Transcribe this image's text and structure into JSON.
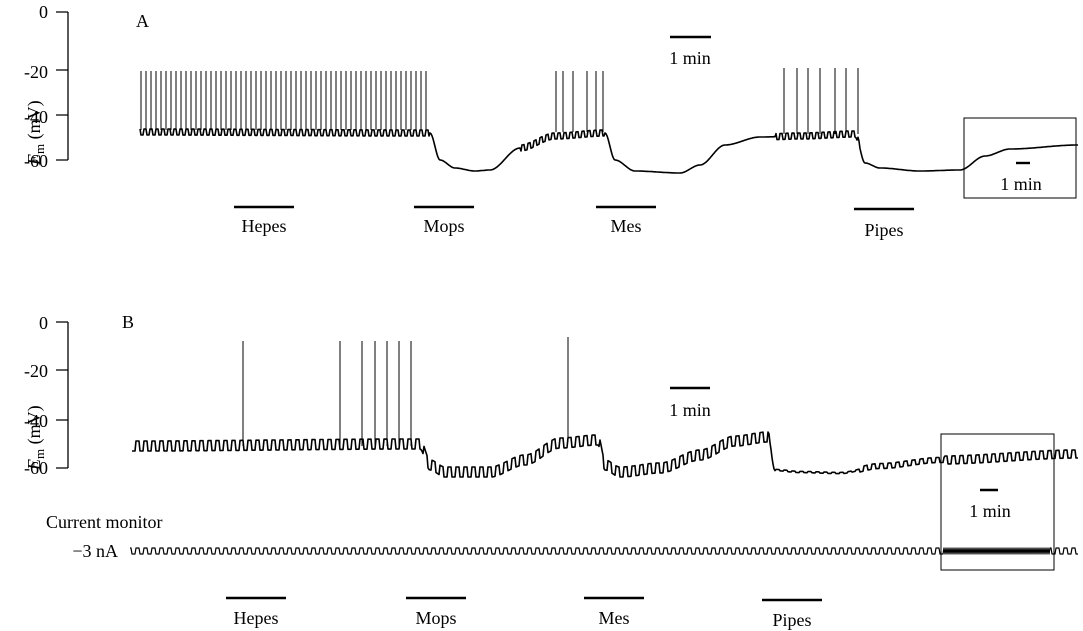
{
  "panels": [
    {
      "label": "A",
      "y_axis_label": {
        "symbol": "E",
        "subscript": "m",
        "unit": " (mV)"
      },
      "y_ticks": [
        "0",
        "-20",
        "-40",
        "-60"
      ],
      "scale_bar": "1 min",
      "inset_scale_bar": "1 min",
      "solutions": [
        "Hepes",
        "Mops",
        "Mes",
        "Pipes"
      ]
    },
    {
      "label": "B",
      "y_axis_label": {
        "symbol": "E",
        "subscript": "m",
        "unit": " (mV)"
      },
      "y_ticks": [
        "0",
        "-20",
        "-40",
        "-60"
      ],
      "scale_bar": "1 min",
      "inset_scale_bar": "1 min",
      "current_monitor_label": "Current monitor",
      "current_level_label": "−3 nA",
      "solutions": [
        "Hepes",
        "Mops",
        "Mes",
        "Pipes"
      ]
    }
  ],
  "chart_data": [
    {
      "type": "line",
      "panel": "A",
      "ylabel": "Em (mV)",
      "ylim": [
        -65,
        0
      ],
      "y_ticks": [
        0,
        -20,
        -40,
        -60
      ],
      "time_scale_min": 1,
      "baseline_mV": -48,
      "spike_peak_mV": -20,
      "epochs": [
        {
          "solution": "Hepes",
          "Em_mV": -48,
          "firing": true
        },
        {
          "solution": "Mops",
          "Em_mV": -64,
          "firing": false
        },
        {
          "solution": "Mes",
          "Em_mV": -65,
          "firing": false
        },
        {
          "solution": "Pipes",
          "Em_mV": -64,
          "firing": false
        }
      ],
      "spike_counts_between_applications": [
        59,
        6,
        6
      ]
    },
    {
      "type": "line",
      "panel": "B",
      "ylabel": "Em (mV)",
      "ylim": [
        -65,
        0
      ],
      "y_ticks": [
        0,
        -20,
        -40,
        -60
      ],
      "time_scale_min": 1,
      "spike_peak_mV": -8,
      "epochs": [
        {
          "solution": "Hepes",
          "Em_mV": -52,
          "firing": true
        },
        {
          "solution": "Mops",
          "Em_mV": -63,
          "firing": false
        },
        {
          "solution": "Mes",
          "Em_mV": -63,
          "firing": false
        },
        {
          "solution": "Pipes",
          "Em_mV": -62,
          "firing": false
        }
      ],
      "current_pulses_nA": -3
    }
  ]
}
